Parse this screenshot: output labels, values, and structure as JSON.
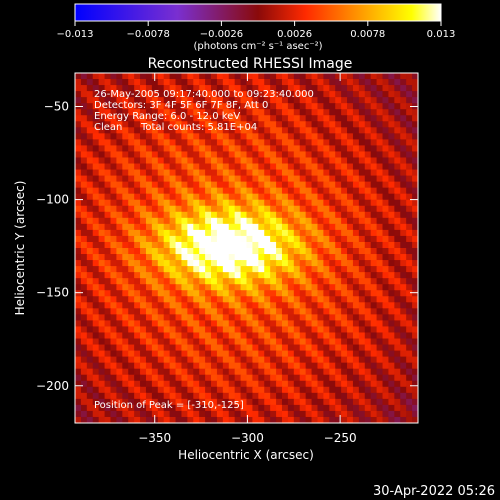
{
  "chart_data": {
    "type": "heatmap",
    "title": "Reconstructed RHESSI Image",
    "xlabel": "Heliocentric X (arcsec)",
    "ylabel": "Heliocentric Y (arcsec)",
    "xlim": [
      -393,
      -208
    ],
    "ylim": [
      -220,
      -32
    ],
    "xticks": [
      -350,
      -300,
      -250
    ],
    "yticks": [
      -50,
      -100,
      -150,
      -200
    ],
    "x_tick_labels": [
      "−350",
      "−300",
      "−250"
    ],
    "y_tick_labels": [
      "−50",
      "−100",
      "−150",
      "−200"
    ],
    "colorbar": {
      "min": -0.013,
      "max": 0.013,
      "ticks": [
        -0.013,
        -0.0078,
        -0.0026,
        0.0026,
        0.0078,
        0.013
      ],
      "tick_labels": [
        "−0.013",
        "−0.0078",
        "−0.0026",
        "0.0026",
        "0.0078",
        "0.013"
      ],
      "unit_label": "(photons cm⁻² s⁻¹ asec⁻²)",
      "colors": [
        "#0000ff",
        "#7a2fd0",
        "#8a0a0a",
        "#ff2a00",
        "#ff9a00",
        "#ffff00",
        "#ffffff"
      ]
    },
    "info": [
      "26-May-2005 09:17:40.000 to 09:23:40.000",
      "Detectors: 3F 4F 5F 6F 7F 8F, Att 0",
      "Energy Range: 6.0 - 12.0 keV",
      "Clean",
      "Total counts: 5.81E+04"
    ],
    "peak_text": "Position of Peak = [-310,-125]",
    "peak": [
      -310,
      -125
    ],
    "grid": false
  },
  "footer": {
    "date": "30-Apr-2022 05:26"
  }
}
